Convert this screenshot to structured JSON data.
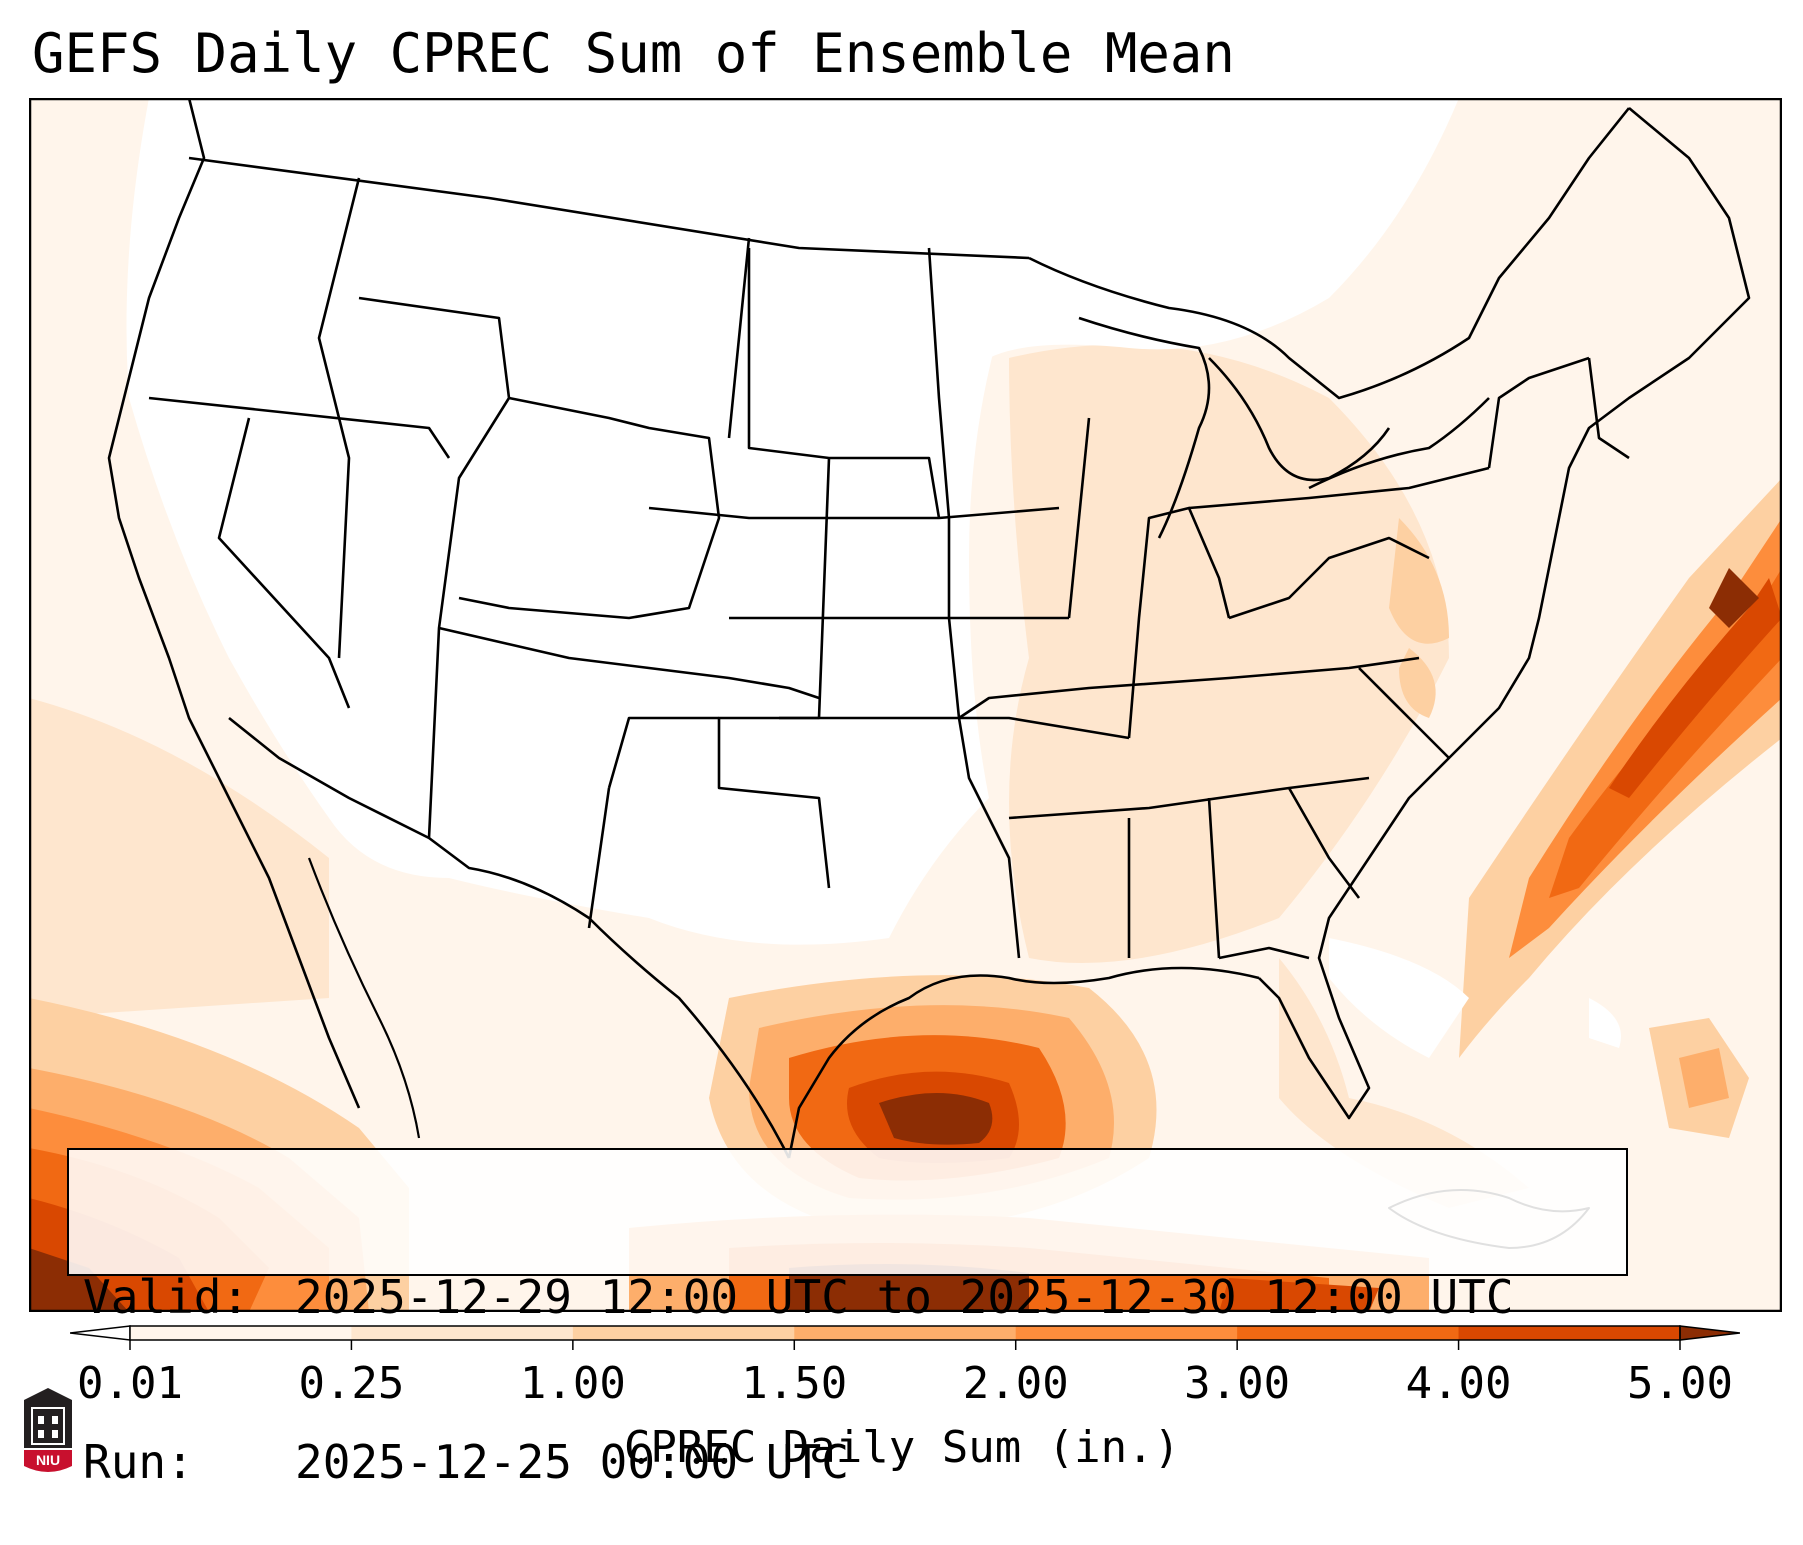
{
  "title": "GEFS Daily CPREC Sum of Ensemble Mean",
  "info": {
    "valid_label": "Valid:",
    "valid_value": "2025-12-29 12:00 UTC to 2025-12-30 12:00 UTC",
    "run_label": "Run:",
    "run_value": "2025-12-25 00:00 UTC"
  },
  "colorbar": {
    "label": "CPREC Daily Sum (in.)",
    "ticks": [
      "0.01",
      "0.25",
      "1.00",
      "1.50",
      "2.00",
      "3.00",
      "4.00",
      "5.00"
    ],
    "colors": [
      "#fff5eb",
      "#fee6ce",
      "#fdd0a2",
      "#fdae6b",
      "#fd8d3c",
      "#f16913",
      "#d94801",
      "#8c2d04"
    ],
    "under_color": "#ffffff",
    "over_color": "#8c2d04",
    "extend": "both"
  },
  "logo": {
    "text": "NIU",
    "colors": {
      "shield": "#231f20",
      "band": "#c8102e"
    }
  },
  "map": {
    "region": "Continental United States",
    "background_color": "#ffffff",
    "boundary_color": "#000000"
  }
}
